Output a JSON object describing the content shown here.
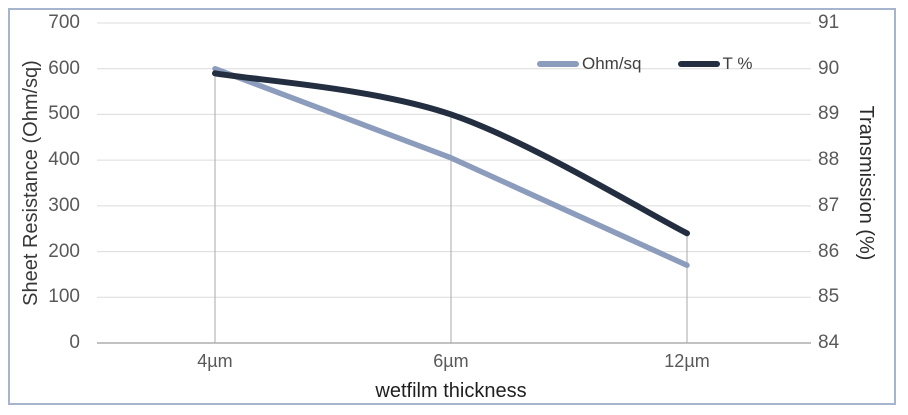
{
  "chart_data": {
    "type": "line",
    "title": "",
    "x_axis": {
      "label": "wetfilm thickness",
      "categories": [
        "4µm",
        "6µm",
        "12µm"
      ]
    },
    "left_axis": {
      "label": "Sheet Resistance (Ohm/sq)",
      "min": 0,
      "max": 700,
      "step": 100,
      "ticks": [
        700,
        600,
        500,
        400,
        300,
        200,
        100,
        0
      ]
    },
    "right_axis": {
      "label": "Transmission (%)",
      "min": 84,
      "max": 91,
      "step": 1,
      "ticks": [
        91,
        90,
        89,
        88,
        87,
        86,
        85,
        84
      ]
    },
    "series": [
      {
        "name": "Ohm/sq",
        "axis": "left",
        "values": [
          600,
          405,
          170
        ],
        "color": "#8C9CBC",
        "width": 5.5,
        "smooth": false
      },
      {
        "name": "T %",
        "axis": "right",
        "values": [
          89.9,
          89.0,
          86.4
        ],
        "color": "#232E40",
        "width": 6,
        "smooth": true
      }
    ],
    "legend": {
      "position": "inside-top-right",
      "entries": [
        "Ohm/sq",
        "T %"
      ]
    },
    "grid": {
      "horizontal": true,
      "vertical": false,
      "drop_lines": true
    },
    "colors": {
      "gridline": "#dcdcdc",
      "axis_line": "#aeaeae",
      "drop_line": "#a9a9a9",
      "tick_label": "#595959",
      "frame_border": "#a7b4ce",
      "background": "#ffffff"
    }
  }
}
